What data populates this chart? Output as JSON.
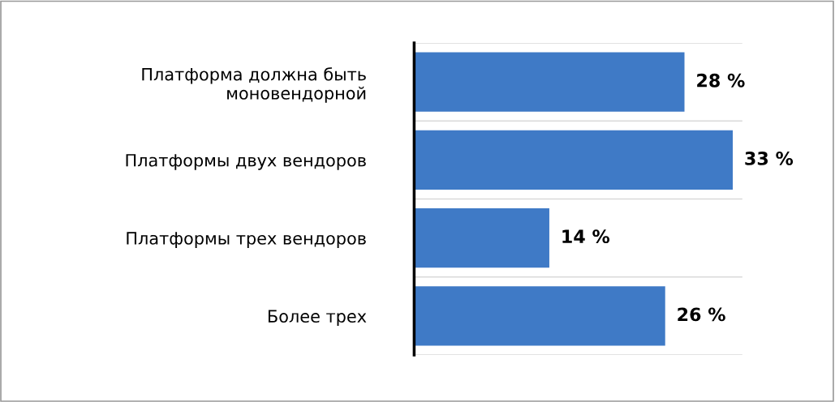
{
  "chart_data": {
    "type": "bar",
    "orientation": "horizontal",
    "categories": [
      "Платформа должна быть\nмоновендорной",
      "Платформы двух вендоров",
      "Платформы трех вендоров",
      "Более трех"
    ],
    "values": [
      28,
      33,
      14,
      26
    ],
    "value_labels": [
      "28 %",
      "33 %",
      "14 %",
      "26 %"
    ],
    "color": "#3f7ac6",
    "grid": "y"
  }
}
